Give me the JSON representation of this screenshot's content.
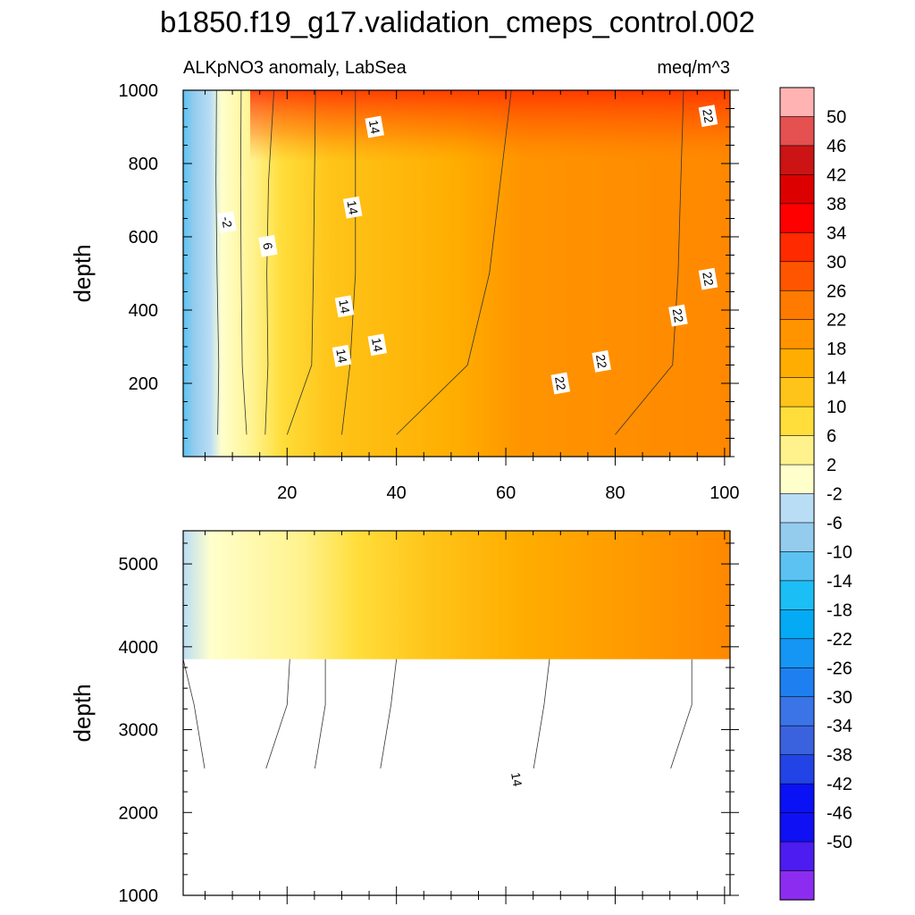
{
  "title": "b1850.f19_g17.validation_cmeps_control.002",
  "subtitle_left": "ALKpNO3 anomaly, LabSea",
  "subtitle_right": "meq/m^3",
  "chart_data": [
    {
      "type": "heatmap",
      "panel": "upper",
      "variable": "ALKpNO3 anomaly, LabSea",
      "units": "meq/m^3",
      "ylabel": "depth",
      "xlim": [
        1,
        101
      ],
      "ylim": [
        1000,
        0
      ],
      "x_ticks": [
        20,
        40,
        60,
        80,
        100
      ],
      "y_ticks": [
        200,
        400,
        600,
        800,
        1000
      ],
      "contour_lines": [
        {
          "level": -2,
          "x": [
            7.3,
            7.5,
            7.2,
            7.0,
            7.1
          ]
        },
        {
          "level": 2,
          "x": [
            12.6,
            11.8,
            11.6,
            11.5,
            11.6
          ]
        },
        {
          "level": 6,
          "x": [
            16.0,
            16.5,
            16.3,
            16.6,
            17.6
          ]
        },
        {
          "level": 10,
          "x": [
            20.0,
            24.5,
            24.8,
            25.0,
            25.2
          ]
        },
        {
          "level": 14,
          "x": [
            30.0,
            31.5,
            32.5,
            32.5,
            32.5
          ]
        },
        {
          "level": 18,
          "x": [
            40.0,
            53.0,
            57.0,
            59.0,
            61.0
          ]
        },
        {
          "level": 22,
          "x": [
            80.0,
            90.5,
            91.5,
            92.0,
            92.5
          ]
        }
      ],
      "contour_depths": [
        60,
        250,
        500,
        750,
        1000
      ],
      "contour_labels": [
        {
          "text": "-2",
          "x": 9.0,
          "y": 640
        },
        {
          "text": "6",
          "x": 16.5,
          "y": 575
        },
        {
          "text": "14",
          "x": 30.0,
          "y": 275
        },
        {
          "text": "14",
          "x": 36.5,
          "y": 305
        },
        {
          "text": "14",
          "x": 30.5,
          "y": 410
        },
        {
          "text": "14",
          "x": 32.0,
          "y": 680
        },
        {
          "text": "14",
          "x": 36.0,
          "y": 900
        },
        {
          "text": "22",
          "x": 70.0,
          "y": 200
        },
        {
          "text": "22",
          "x": 77.5,
          "y": 260
        },
        {
          "text": "22",
          "x": 91.5,
          "y": 385
        },
        {
          "text": "22",
          "x": 97.0,
          "y": 485
        },
        {
          "text": "22",
          "x": 97.0,
          "y": 930
        }
      ]
    },
    {
      "type": "heatmap",
      "panel": "lower",
      "variable": "ALKpNO3 anomaly, LabSea",
      "units": "meq/m^3",
      "ylabel": "depth",
      "xlim": [
        1,
        101
      ],
      "ylim": [
        5400,
        1000
      ],
      "x_ticks": [
        20,
        40,
        60,
        80,
        100
      ],
      "y_ticks": [
        1000,
        2000,
        3000,
        4000,
        5000
      ],
      "data_bottom_depth": 3850,
      "contour_lines": [
        {
          "level": -6,
          "x": [
            6.5,
            6.0,
            5.0,
            3.0,
            1.0
          ]
        },
        {
          "level": -2,
          "x": [
            9.0,
            13.0,
            16.0,
            20.0,
            20.5
          ]
        },
        {
          "level": 2,
          "x": [
            15.0,
            22.0,
            25.0,
            27.0,
            27.0
          ]
        },
        {
          "level": 6,
          "x": [
            21.0,
            30.0,
            37.0,
            39.0,
            40.0
          ]
        },
        {
          "level": 10,
          "x": [
            43.0,
            49.0,
            65.0,
            67.0,
            68.0
          ]
        },
        {
          "level": 14,
          "x": [
            62.0,
            75.0,
            90.0,
            94.0,
            94.0
          ]
        }
      ],
      "contour_depths": [
        1000,
        1800,
        2500,
        3300,
        3850
      ],
      "contour_labels": [
        {
          "text": "14",
          "x": 62.0,
          "y": 2400
        }
      ]
    }
  ],
  "colorbar": {
    "levels": [
      "50",
      "46",
      "42",
      "38",
      "34",
      "30",
      "26",
      "22",
      "18",
      "14",
      "10",
      "6",
      "2",
      "-2",
      "-6",
      "-10",
      "-14",
      "-18",
      "-22",
      "-26",
      "-30",
      "-34",
      "-38",
      "-42",
      "-46",
      "-50"
    ],
    "colors": [
      "#ffb3b3",
      "#e55050",
      "#cc1414",
      "#dd0000",
      "#ff0000",
      "#ff2a00",
      "#ff5500",
      "#ff7b00",
      "#ff9400",
      "#ffad00",
      "#ffc419",
      "#ffdd3a",
      "#fff28c",
      "#ffffcc",
      "#b9ddf5",
      "#94ccee",
      "#5cc2f2",
      "#1cbff5",
      "#05aaf5",
      "#1596f5",
      "#1e80f0",
      "#3a74e6",
      "#3a62df",
      "#2244e6",
      "#0a11f5",
      "#1010f5",
      "#4d1cf0",
      "#8c2cf0"
    ]
  }
}
